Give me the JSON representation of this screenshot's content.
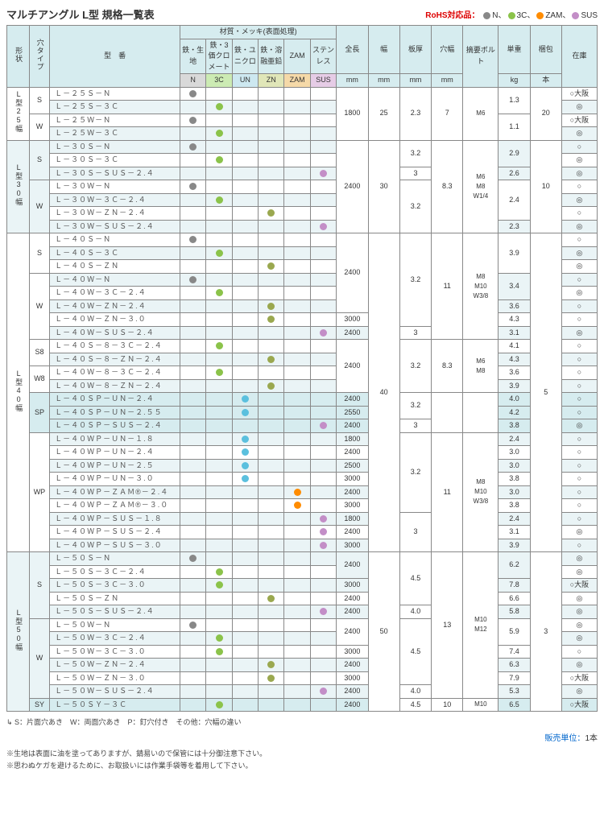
{
  "title": "マルチアングル L型 規格一覧表",
  "rohs": {
    "label": "RoHS対応品：",
    "items": [
      {
        "color": "#888888",
        "label": "N、"
      },
      {
        "color": "#8bc34a",
        "label": "3C、"
      },
      {
        "color": "#ff8c00",
        "label": "ZAM、"
      },
      {
        "color": "#c38ec7",
        "label": "SUS"
      }
    ]
  },
  "colors": {
    "N": "#888888",
    "3C": "#8bc34a",
    "UN": "#5bc0de",
    "ZN": "#9aa84f",
    "ZAM": "#ff8c00",
    "SUS": "#c38ec7"
  },
  "headers": {
    "shape": "形状",
    "holeType": "穴タイプ",
    "model": "型　番",
    "materialGroup": "材質・メッキ(表面処理)",
    "mats": [
      "鉄・生地",
      "鉄・3価クロメート",
      "鉄・ユニクロ",
      "鉄・溶融亜鉛",
      "ZAM",
      "ステンレス"
    ],
    "matCodes": [
      "N",
      "3C",
      "UN",
      "ZN",
      "ZAM",
      "SUS"
    ],
    "length": "全長",
    "width": "幅",
    "thick": "板厚",
    "holeW": "穴幅",
    "bolt": "摘要ボルト",
    "weight": "単重",
    "pack": "梱包",
    "stock": "在庫",
    "units": {
      "mm": "mm",
      "kg": "kg",
      "hon": "本"
    }
  },
  "stockMarks": {
    "osaka": "○大阪",
    "yes": "○",
    "dbl": "◎"
  },
  "groups": [
    {
      "shape": "L型25幅",
      "subs": [
        {
          "hole": "S",
          "rows": [
            {
              "m": "Ｌ－２５Ｓ－Ｎ",
              "mat": "N",
              "len": "",
              "w": "",
              "t": "",
              "hw": "",
              "b": "",
              "wt": "",
              "pk": "",
              "st": "osaka"
            },
            {
              "m": "Ｌ－２５Ｓ－３Ｃ",
              "mat": "3C",
              "len": "",
              "w": "",
              "t": "",
              "hw": "",
              "b": "",
              "wt": "",
              "pk": "",
              "st": "dbl",
              "alt": true
            }
          ]
        },
        {
          "hole": "W",
          "rows": [
            {
              "m": "Ｌ－２５Ｗ－Ｎ",
              "mat": "N",
              "st": "osaka"
            },
            {
              "m": "Ｌ－２５Ｗ－３Ｃ",
              "mat": "3C",
              "st": "dbl",
              "alt": true
            }
          ]
        }
      ],
      "spans": {
        "len": "1800",
        "w": "25",
        "t": "2.3",
        "hw": "7",
        "b": "M6",
        "wt": [
          "1.3",
          "1.1"
        ],
        "wtRows": [
          2,
          2
        ],
        "pk": "20"
      }
    },
    {
      "shape": "L型\n30幅",
      "shapeAlt": true,
      "subs": [
        {
          "hole": "S",
          "alt": true,
          "rows": [
            {
              "m": "Ｌ－３０Ｓ－Ｎ",
              "mat": "N",
              "st": "yes",
              "alt": true
            },
            {
              "m": "Ｌ－３０Ｓ－３Ｃ",
              "mat": "3C",
              "st": "dbl"
            },
            {
              "m": "Ｌ－３０Ｓ－ＳＵＳ－２.４",
              "mat": "SUS",
              "st": "dbl",
              "alt": true
            }
          ]
        },
        {
          "hole": "W",
          "alt": true,
          "rows": [
            {
              "m": "Ｌ－３０Ｗ－Ｎ",
              "mat": "N",
              "st": "yes"
            },
            {
              "m": "Ｌ－３０Ｗ－３Ｃ－２.４",
              "mat": "3C",
              "st": "dbl",
              "alt": true
            },
            {
              "m": "Ｌ－３０Ｗ－ＺＮ－２.４",
              "mat": "ZN",
              "st": "yes"
            },
            {
              "m": "Ｌ－３０Ｗ－ＳＵＳ－２.４",
              "mat": "SUS",
              "st": "dbl",
              "alt": true
            }
          ]
        }
      ],
      "spans": {
        "len": "2400",
        "w": "30",
        "hw": "8.3",
        "b": "M6\nM8\nW1/4",
        "pk": "10",
        "tList": [
          {
            "v": "3.2",
            "r": 2
          },
          {
            "v": "3",
            "r": 1
          },
          {
            "v": "3.2",
            "r": 4
          }
        ],
        "wtList": [
          {
            "v": "2.9",
            "r": 2
          },
          {
            "v": "2.6",
            "r": 1
          },
          {
            "v": "2.4",
            "r": 3
          },
          {
            "v": "2.3",
            "r": 1
          }
        ]
      }
    },
    {
      "shape": "L型\n40幅",
      "subs": [
        {
          "hole": "S",
          "rows": [
            {
              "m": "Ｌ－４０Ｓ－Ｎ",
              "mat": "N",
              "st": "yes"
            },
            {
              "m": "Ｌ－４０Ｓ－３Ｃ",
              "mat": "3C",
              "st": "dbl",
              "alt": true
            },
            {
              "m": "Ｌ－４０Ｓ－ＺＮ",
              "mat": "ZN",
              "st": "dbl"
            }
          ]
        },
        {
          "hole": "W",
          "rows": [
            {
              "m": "Ｌ－４０Ｗ－Ｎ",
              "mat": "N",
              "st": "yes",
              "alt": true
            },
            {
              "m": "Ｌ－４０Ｗ－３Ｃ－２.４",
              "mat": "3C",
              "st": "dbl"
            },
            {
              "m": "Ｌ－４０Ｗ－ＺＮ－２.４",
              "mat": "ZN",
              "st": "yes",
              "alt": true
            },
            {
              "m": "Ｌ－４０Ｗ－ＺＮ－３.０",
              "mat": "ZN",
              "st": "yes"
            },
            {
              "m": "Ｌ－４０Ｗ－ＳＵＳ－２.４",
              "mat": "SUS",
              "st": "dbl",
              "alt": true
            }
          ]
        },
        {
          "hole": "S8",
          "rows": [
            {
              "m": "Ｌ－４０Ｓ－８－３Ｃ－２.４",
              "mat": "3C",
              "st": "yes"
            },
            {
              "m": "Ｌ－４０Ｓ－８－ＺＮ－２.４",
              "mat": "ZN",
              "st": "yes",
              "alt": true
            }
          ]
        },
        {
          "hole": "W8",
          "rows": [
            {
              "m": "Ｌ－４０Ｗ－８－３Ｃ－２.４",
              "mat": "3C",
              "st": "yes"
            },
            {
              "m": "Ｌ－４０Ｗ－８－ＺＮ－２.４",
              "mat": "ZN",
              "st": "yes",
              "alt": true
            }
          ]
        },
        {
          "hole": "SP",
          "sp": true,
          "rows": [
            {
              "m": "Ｌ－４０ＳＰ－ＵＮ－２.４",
              "mat": "UN",
              "st": "yes",
              "sp": true
            },
            {
              "m": "Ｌ－４０ＳＰ－ＵＮ－２.５５",
              "mat": "UN",
              "st": "yes",
              "sp": true
            },
            {
              "m": "Ｌ－４０ＳＰ－ＳＵＳ－２.４",
              "mat": "SUS",
              "st": "dbl",
              "sp": true
            }
          ]
        },
        {
          "hole": "WP",
          "rows": [
            {
              "m": "Ｌ－４０ＷＰ－ＵＮ－１.８",
              "mat": "UN",
              "st": "yes",
              "alt": true
            },
            {
              "m": "Ｌ－４０ＷＰ－ＵＮ－２.４",
              "mat": "UN",
              "st": "yes"
            },
            {
              "m": "Ｌ－４０ＷＰ－ＵＮ－２.５",
              "mat": "UN",
              "st": "yes",
              "alt": true
            },
            {
              "m": "Ｌ－４０ＷＰ－ＵＮ－３.０",
              "mat": "UN",
              "st": "yes"
            },
            {
              "m": "Ｌ－４０ＷＰ－ＺＡＭ®－２.４",
              "mat": "ZAM",
              "st": "yes",
              "alt": true
            },
            {
              "m": "Ｌ－４０ＷＰ－ＺＡＭ®－３.０",
              "mat": "ZAM",
              "st": "yes"
            },
            {
              "m": "Ｌ－４０ＷＰ－ＳＵＳ－１.８",
              "mat": "SUS",
              "st": "yes",
              "alt": true
            },
            {
              "m": "Ｌ－４０ＷＰ－ＳＵＳ－２.４",
              "mat": "SUS",
              "st": "dbl"
            },
            {
              "m": "Ｌ－４０ＷＰ－ＳＵＳ－３.０",
              "mat": "SUS",
              "st": "yes",
              "alt": true
            }
          ]
        }
      ],
      "spans": {
        "w": "40",
        "pk": "5",
        "lenList": [
          {
            "v": "2400",
            "r": 6
          },
          {
            "v": "3000",
            "r": 1
          },
          {
            "v": "2400",
            "r": 1
          },
          {
            "v": "2400",
            "r": 4
          },
          {
            "v": "2400",
            "r": 1
          },
          {
            "v": "2550",
            "r": 1
          },
          {
            "v": "2400",
            "r": 1
          },
          {
            "v": "1800",
            "r": 1
          },
          {
            "v": "2400",
            "r": 1
          },
          {
            "v": "2500",
            "r": 1
          },
          {
            "v": "3000",
            "r": 1
          },
          {
            "v": "2400",
            "r": 1
          },
          {
            "v": "3000",
            "r": 1
          },
          {
            "v": "1800",
            "r": 1
          },
          {
            "v": "2400",
            "r": 1
          },
          {
            "v": "3000",
            "r": 1
          }
        ],
        "tList": [
          {
            "v": "3.2",
            "r": 7
          },
          {
            "v": "3",
            "r": 1
          },
          {
            "v": "3.2",
            "r": 4
          },
          {
            "v": "3.2",
            "r": 2
          },
          {
            "v": "3",
            "r": 1
          },
          {
            "v": "3.2",
            "r": 6
          },
          {
            "v": "3",
            "r": 3
          }
        ],
        "hwList": [
          {
            "v": "11",
            "r": 8
          },
          {
            "v": "8.3",
            "r": 4
          },
          {
            "v": "",
            "r": 3
          },
          {
            "v": "11",
            "r": 9
          }
        ],
        "bList": [
          {
            "v": "M8\nM10\nW3/8",
            "r": 8
          },
          {
            "v": "M6\nM8",
            "r": 4
          },
          {
            "v": "",
            "r": 3
          },
          {
            "v": "M8\nM10\nW3/8",
            "r": 9
          }
        ],
        "wtList": [
          {
            "v": "3.9",
            "r": 3
          },
          {
            "v": "3.4",
            "r": 2
          },
          {
            "v": "3.6",
            "r": 1
          },
          {
            "v": "4.3",
            "r": 1
          },
          {
            "v": "3.1",
            "r": 1
          },
          {
            "v": "4.1",
            "r": 1
          },
          {
            "v": "4.3",
            "r": 1
          },
          {
            "v": "3.6",
            "r": 1
          },
          {
            "v": "3.9",
            "r": 1
          },
          {
            "v": "4.0",
            "r": 1
          },
          {
            "v": "4.2",
            "r": 1
          },
          {
            "v": "3.8",
            "r": 1
          },
          {
            "v": "2.4",
            "r": 1
          },
          {
            "v": "3.0",
            "r": 1
          },
          {
            "v": "3.0",
            "r": 1
          },
          {
            "v": "3.8",
            "r": 1
          },
          {
            "v": "3.0",
            "r": 1
          },
          {
            "v": "3.8",
            "r": 1
          },
          {
            "v": "2.4",
            "r": 1
          },
          {
            "v": "3.1",
            "r": 1
          },
          {
            "v": "3.9",
            "r": 1
          }
        ]
      }
    },
    {
      "shape": "L型\n50幅",
      "shapeAlt": true,
      "subs": [
        {
          "hole": "S",
          "alt": true,
          "rows": [
            {
              "m": "Ｌ－５０Ｓ－Ｎ",
              "mat": "N",
              "st": "dbl",
              "alt": true
            },
            {
              "m": "Ｌ－５０Ｓ－３Ｃ－２.４",
              "mat": "3C",
              "st": "dbl"
            },
            {
              "m": "Ｌ－５０Ｓ－３Ｃ－３.０",
              "mat": "3C",
              "st": "osaka",
              "alt": true
            },
            {
              "m": "Ｌ－５０Ｓ－ＺＮ",
              "mat": "ZN",
              "st": "dbl"
            },
            {
              "m": "Ｌ－５０Ｓ－ＳＵＳ－２.４",
              "mat": "SUS",
              "st": "dbl",
              "alt": true
            }
          ]
        },
        {
          "hole": "W",
          "alt": true,
          "rows": [
            {
              "m": "Ｌ－５０Ｗ－Ｎ",
              "mat": "N",
              "st": "dbl"
            },
            {
              "m": "Ｌ－５０Ｗ－３Ｃ－２.４",
              "mat": "3C",
              "st": "dbl",
              "alt": true
            },
            {
              "m": "Ｌ－５０Ｗ－３Ｃ－３.０",
              "mat": "3C",
              "st": "yes"
            },
            {
              "m": "Ｌ－５０Ｗ－ＺＮ－２.４",
              "mat": "ZN",
              "st": "dbl",
              "alt": true
            },
            {
              "m": "Ｌ－５０Ｗ－ＺＮ－３.０",
              "mat": "ZN",
              "st": "osaka"
            },
            {
              "m": "Ｌ－５０Ｗ－ＳＵＳ－２.４",
              "mat": "SUS",
              "st": "dbl",
              "alt": true
            }
          ]
        },
        {
          "hole": "SY",
          "sp": true,
          "rows": [
            {
              "m": "Ｌ－５０ＳＹ－３Ｃ",
              "mat": "3C",
              "st": "osaka",
              "sp": true
            }
          ]
        }
      ],
      "spans": {
        "w": "50",
        "hw": "13",
        "b": "M10\nM12",
        "pk": "3",
        "lenList": [
          {
            "v": "2400",
            "r": 2
          },
          {
            "v": "3000",
            "r": 1
          },
          {
            "v": "2400",
            "r": 1
          },
          {
            "v": "2400",
            "r": 1
          },
          {
            "v": "2400",
            "r": 2
          },
          {
            "v": "3000",
            "r": 1
          },
          {
            "v": "2400",
            "r": 1
          },
          {
            "v": "3000",
            "r": 1
          },
          {
            "v": "2400",
            "r": 1
          },
          {
            "v": "2400",
            "r": 1
          }
        ],
        "tList": [
          {
            "v": "4.5",
            "r": 4
          },
          {
            "v": "4.0",
            "r": 1
          },
          {
            "v": "4.5",
            "r": 5
          },
          {
            "v": "4.0",
            "r": 1
          },
          {
            "v": "4.5",
            "r": 1
          }
        ],
        "hwList": [
          {
            "v": "13",
            "r": 11
          },
          {
            "v": "10",
            "r": 1
          }
        ],
        "bList": [
          {
            "v": "M10\nM12",
            "r": 11
          },
          {
            "v": "M10",
            "r": 1
          }
        ],
        "wtList": [
          {
            "v": "6.2",
            "r": 2
          },
          {
            "v": "7.8",
            "r": 1
          },
          {
            "v": "6.6",
            "r": 1
          },
          {
            "v": "5.8",
            "r": 1
          },
          {
            "v": "5.9",
            "r": 2
          },
          {
            "v": "7.4",
            "r": 1
          },
          {
            "v": "6.3",
            "r": 1
          },
          {
            "v": "7.9",
            "r": 1
          },
          {
            "v": "5.3",
            "r": 1
          },
          {
            "v": "6.5",
            "r": 1
          }
        ]
      }
    }
  ],
  "legend": "S：片面穴あき　W：両面穴あき　P：釘穴付き　その他：穴幅の違い",
  "salesUnit": {
    "label": "販売単位：",
    "value": "1本"
  },
  "notes": [
    "※生地は表面に油を塗ってありますが、錆易いので保管には十分御注意下さい。",
    "※思わぬケガを避けるために、お取扱いには作業手袋等を着用して下さい。"
  ]
}
